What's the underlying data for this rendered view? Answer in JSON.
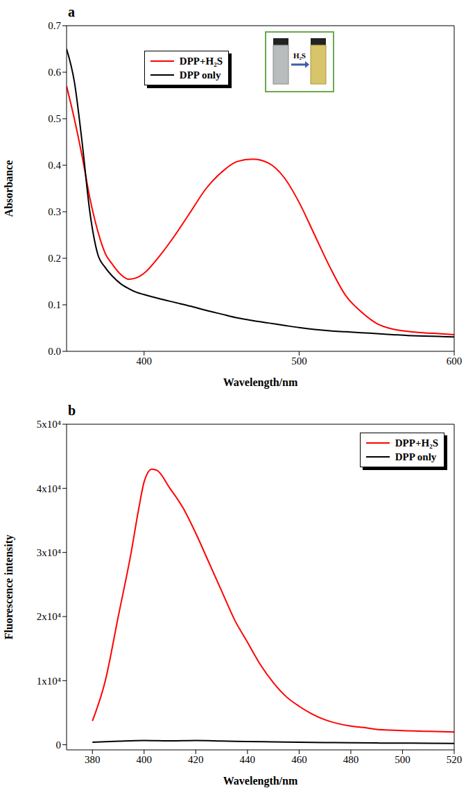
{
  "chart_data": [
    {
      "type": "line",
      "panel": "a",
      "x_label": "Wavelength/nm",
      "y_label": "Absorbance",
      "xlim": [
        350,
        600
      ],
      "xticks": [
        400,
        500,
        600
      ],
      "ylim": [
        0,
        0.7
      ],
      "yticks": [
        {
          "value": 0,
          "label": "0.0"
        },
        0.1,
        0.2,
        0.3,
        0.4,
        0.5,
        0.6,
        0.7
      ],
      "legend": "top",
      "annotations": [
        {
          "text": "H₂S"
        }
      ],
      "x": [
        350,
        355,
        360,
        365,
        370,
        375,
        380,
        385,
        390,
        395,
        400,
        410,
        420,
        430,
        440,
        450,
        460,
        470,
        480,
        490,
        500,
        510,
        520,
        530,
        540,
        550,
        560,
        570,
        580,
        590,
        600
      ],
      "series": [
        {
          "name": "DPP+H₂S",
          "color": "#ff0000",
          "values": [
            0.57,
            0.5,
            0.42,
            0.33,
            0.26,
            0.21,
            0.185,
            0.165,
            0.155,
            0.158,
            0.168,
            0.205,
            0.25,
            0.3,
            0.35,
            0.385,
            0.408,
            0.413,
            0.405,
            0.375,
            0.32,
            0.25,
            0.18,
            0.12,
            0.085,
            0.06,
            0.048,
            0.043,
            0.04,
            0.038,
            0.036
          ]
        },
        {
          "name": "DPP only",
          "color": "#000000",
          "values": [
            0.65,
            0.58,
            0.45,
            0.3,
            0.21,
            0.18,
            0.16,
            0.145,
            0.135,
            0.127,
            0.122,
            0.113,
            0.105,
            0.097,
            0.088,
            0.08,
            0.072,
            0.066,
            0.061,
            0.056,
            0.051,
            0.047,
            0.044,
            0.042,
            0.04,
            0.038,
            0.036,
            0.034,
            0.033,
            0.032,
            0.031
          ]
        }
      ]
    },
    {
      "type": "line",
      "panel": "b",
      "x_label": "Wavelength/nm",
      "y_label": "Fluorescence intensity",
      "xlim": [
        370,
        520
      ],
      "xticks": [
        380,
        400,
        420,
        440,
        460,
        480,
        500,
        520
      ],
      "ylim": [
        -800,
        50000
      ],
      "yticks": [
        0,
        {
          "value": 10000,
          "label": "1x10⁴"
        },
        {
          "value": 20000,
          "label": "2x10⁴"
        },
        {
          "value": 30000,
          "label": "3x10⁴"
        },
        {
          "value": 40000,
          "label": "4x10⁴"
        },
        {
          "value": 50000,
          "label": "5x10⁴"
        }
      ],
      "legend": "upper right",
      "series": [
        {
          "name": "DPP+H₂S",
          "color": "#ff0000",
          "x": [
            380,
            385,
            390,
            395,
            398,
            400,
            403,
            405,
            410,
            415,
            420,
            425,
            430,
            435,
            440,
            445,
            450,
            455,
            460,
            465,
            470,
            475,
            480,
            485,
            490,
            495,
            500,
            510,
            520
          ],
          "values": [
            3700,
            10000,
            20000,
            30000,
            37000,
            41000,
            43000,
            42800,
            40000,
            37000,
            33000,
            28500,
            24000,
            19500,
            16000,
            12500,
            9700,
            7500,
            6000,
            4800,
            3900,
            3300,
            2900,
            2700,
            2400,
            2300,
            2200,
            2100,
            2000
          ]
        },
        {
          "name": "DPP only",
          "color": "#000000",
          "x": [
            380,
            390,
            400,
            410,
            420,
            430,
            440,
            450,
            460,
            470,
            480,
            490,
            500,
            510,
            520
          ],
          "values": [
            400,
            550,
            650,
            600,
            650,
            580,
            500,
            450,
            400,
            350,
            300,
            270,
            250,
            230,
            200
          ]
        }
      ]
    }
  ]
}
